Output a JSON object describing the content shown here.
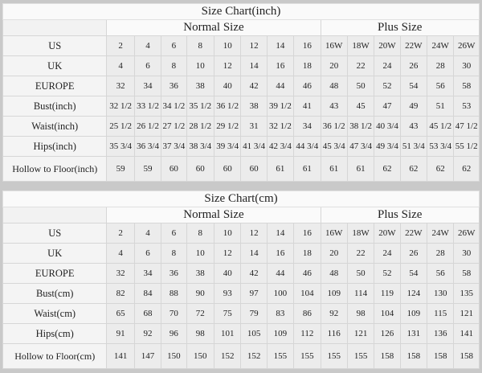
{
  "charts": [
    {
      "id": "chart-inch",
      "title": "Size Chart(inch)",
      "normal_label": "Normal Size",
      "plus_label": "Plus Size",
      "rows": [
        {
          "label": "US",
          "values": [
            "2",
            "4",
            "6",
            "8",
            "10",
            "12",
            "14",
            "16",
            "16W",
            "18W",
            "20W",
            "22W",
            "24W",
            "26W"
          ]
        },
        {
          "label": "UK",
          "values": [
            "4",
            "6",
            "8",
            "10",
            "12",
            "14",
            "16",
            "18",
            "20",
            "22",
            "24",
            "26",
            "28",
            "30"
          ]
        },
        {
          "label": "EUROPE",
          "values": [
            "32",
            "34",
            "36",
            "38",
            "40",
            "42",
            "44",
            "46",
            "48",
            "50",
            "52",
            "54",
            "56",
            "58"
          ]
        },
        {
          "label": "Bust(inch)",
          "values": [
            "32 1/2",
            "33 1/2",
            "34 1/2",
            "35 1/2",
            "36 1/2",
            "38",
            "39 1/2",
            "41",
            "43",
            "45",
            "47",
            "49",
            "51",
            "53"
          ]
        },
        {
          "label": "Waist(inch)",
          "values": [
            "25 1/2",
            "26 1/2",
            "27 1/2",
            "28 1/2",
            "29 1/2",
            "31",
            "32 1/2",
            "34",
            "36 1/2",
            "38 1/2",
            "40 3/4",
            "43",
            "45 1/2",
            "47 1/2"
          ]
        },
        {
          "label": "Hips(inch)",
          "values": [
            "35 3/4",
            "36 3/4",
            "37 3/4",
            "38 3/4",
            "39 3/4",
            "41 3/4",
            "42 3/4",
            "44 3/4",
            "45 3/4",
            "47 3/4",
            "49 3/4",
            "51 3/4",
            "53 3/4",
            "55 1/2"
          ]
        },
        {
          "label": "Hollow to Floor(inch)",
          "values": [
            "59",
            "59",
            "60",
            "60",
            "60",
            "60",
            "61",
            "61",
            "61",
            "61",
            "62",
            "62",
            "62",
            "62"
          ]
        }
      ]
    },
    {
      "id": "chart-cm",
      "title": "Size Chart(cm)",
      "normal_label": "Normal Size",
      "plus_label": "Plus Size",
      "rows": [
        {
          "label": "US",
          "values": [
            "2",
            "4",
            "6",
            "8",
            "10",
            "12",
            "14",
            "16",
            "16W",
            "18W",
            "20W",
            "22W",
            "24W",
            "26W"
          ]
        },
        {
          "label": "UK",
          "values": [
            "4",
            "6",
            "8",
            "10",
            "12",
            "14",
            "16",
            "18",
            "20",
            "22",
            "24",
            "26",
            "28",
            "30"
          ]
        },
        {
          "label": "EUROPE",
          "values": [
            "32",
            "34",
            "36",
            "38",
            "40",
            "42",
            "44",
            "46",
            "48",
            "50",
            "52",
            "54",
            "56",
            "58"
          ]
        },
        {
          "label": "Bust(cm)",
          "values": [
            "82",
            "84",
            "88",
            "90",
            "93",
            "97",
            "100",
            "104",
            "109",
            "114",
            "119",
            "124",
            "130",
            "135"
          ]
        },
        {
          "label": "Waist(cm)",
          "values": [
            "65",
            "68",
            "70",
            "72",
            "75",
            "79",
            "83",
            "86",
            "92",
            "98",
            "104",
            "109",
            "115",
            "121"
          ]
        },
        {
          "label": "Hips(cm)",
          "values": [
            "91",
            "92",
            "96",
            "98",
            "101",
            "105",
            "109",
            "112",
            "116",
            "121",
            "126",
            "131",
            "136",
            "141"
          ]
        },
        {
          "label": "Hollow to Floor(cm)",
          "values": [
            "141",
            "147",
            "150",
            "150",
            "152",
            "152",
            "155",
            "155",
            "155",
            "155",
            "158",
            "158",
            "158",
            "158"
          ]
        }
      ]
    }
  ]
}
